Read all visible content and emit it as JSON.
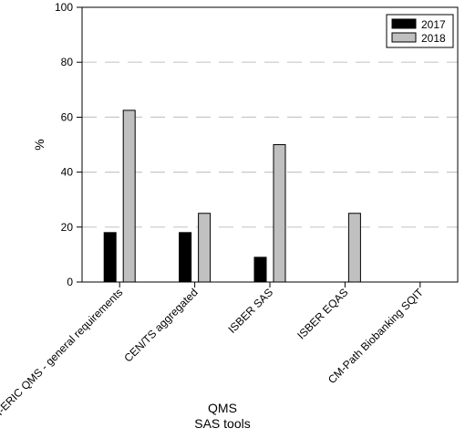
{
  "chart_data": {
    "type": "bar",
    "categories": [
      "BBMRI-ERIC QMS - general requirements",
      "CEN/TS aggregated",
      "ISBER SAS",
      "ISBER EQAS",
      "CM-Path Biobanking SQIT"
    ],
    "series": [
      {
        "name": "2017",
        "values": [
          18,
          18,
          9,
          0,
          0
        ],
        "color": "#000000"
      },
      {
        "name": "2018",
        "values": [
          62.5,
          25,
          50,
          25,
          0
        ],
        "color": "#c0c0c0"
      }
    ],
    "title": "",
    "xlabel": [
      "QMS",
      "SAS tools"
    ],
    "ylabel": "%",
    "ylim": [
      0,
      100
    ],
    "yticks": [
      "0",
      "20",
      "40",
      "60",
      "80",
      "100"
    ],
    "grid": "dashed horizontal at 20, 40, 60, 80",
    "legend_position": "top-right",
    "gridline_color": "#c8c8c8"
  }
}
